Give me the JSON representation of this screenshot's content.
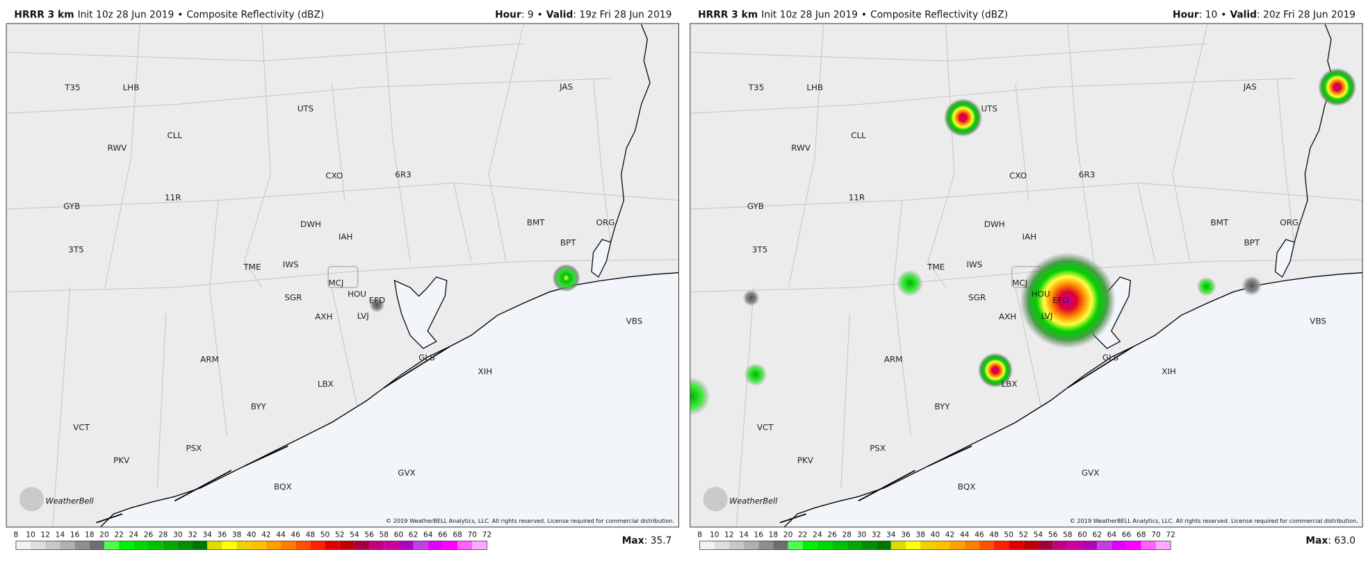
{
  "panels": [
    {
      "model": "HRRR 3 km",
      "init": "Init 10z 28 Jun 2019",
      "separator": "•",
      "product": "Composite Reflectivity (dBZ)",
      "hour_label": "Hour",
      "hour": ": 9",
      "separator2": "•",
      "valid_label": "Valid",
      "valid": ": 19z Fri 28 Jun 2019",
      "max_label": "Max",
      "max_value": ": 35.7"
    },
    {
      "model": "HRRR 3 km",
      "init": "Init 10z 28 Jun 2019",
      "separator": "•",
      "product": "Composite Reflectivity (dBZ)",
      "hour_label": "Hour",
      "hour": ": 10",
      "separator2": "•",
      "valid_label": "Valid",
      "valid": ": 20z Fri 28 Jun 2019",
      "max_label": "Max",
      "max_value": ": 63.0"
    }
  ],
  "stations": [
    "T35",
    "LHB",
    "UTS",
    "JAS",
    "CLL",
    "RWV",
    "CXO",
    "6R3",
    "GYB",
    "11R",
    "DWH",
    "IAH",
    "BMT",
    "ORG",
    "BPT",
    "3T5",
    "TME",
    "IWS",
    "MCJ",
    "HOU",
    "EFD",
    "SGR",
    "AXH",
    "LVJ",
    "VBS",
    "ARM",
    "GLS",
    "XIH",
    "LBX",
    "BYY",
    "VCT",
    "PSX",
    "PKV",
    "GVX",
    "BQX"
  ],
  "copyright": "© 2019 WeatherBELL Analytics, LLC. All rights reserved. License required for commercial distribution.",
  "logo": "WeatherBell",
  "colorbar": {
    "ticks": [
      8,
      10,
      12,
      14,
      16,
      18,
      20,
      22,
      24,
      26,
      28,
      30,
      32,
      34,
      36,
      38,
      40,
      42,
      44,
      46,
      48,
      50,
      52,
      54,
      56,
      58,
      60,
      62,
      64,
      66,
      68,
      70,
      72
    ],
    "colors": [
      "#f2f2f2",
      "#dedede",
      "#c8c8c8",
      "#b0b0b0",
      "#8e8e8e",
      "#6e6e6e",
      "#4cff4c",
      "#00f000",
      "#00d800",
      "#00c000",
      "#00a800",
      "#009000",
      "#007800",
      "#dcdc00",
      "#ffff00",
      "#f0d000",
      "#ffc000",
      "#ffa000",
      "#ff8000",
      "#ff5000",
      "#ff2000",
      "#e00000",
      "#c00000",
      "#a00040",
      "#c00080",
      "#d000a0",
      "#b000c0",
      "#c040e0",
      "#e000ff",
      "#ff00ff",
      "#ff60ff",
      "#ffa8ff"
    ]
  }
}
